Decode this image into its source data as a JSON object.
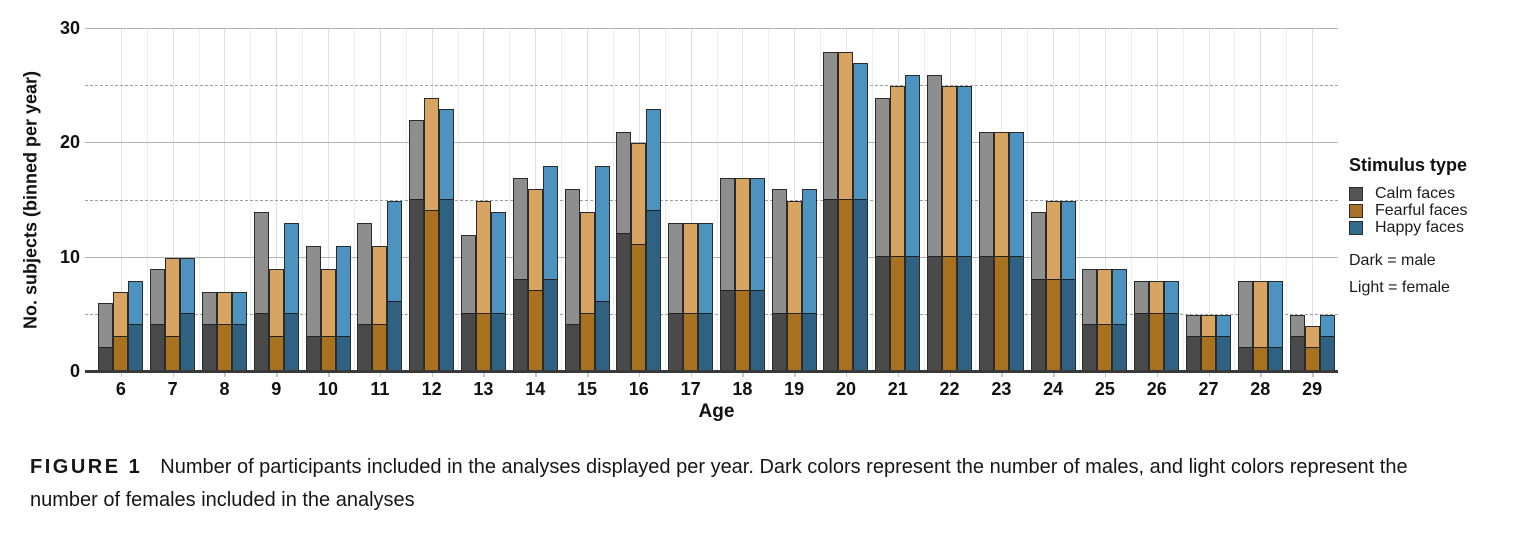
{
  "chart_data": {
    "type": "bar",
    "title": "",
    "xlabel": "Age",
    "ylabel": "No. subjects (binned per year)",
    "ylim": [
      0,
      30
    ],
    "yticks": [
      0,
      10,
      20,
      30
    ],
    "solid_gridlines": [
      10,
      20,
      30
    ],
    "dashed_gridlines": [
      5,
      15,
      25
    ],
    "grid": true,
    "legend_position": "right",
    "categories": [
      6,
      7,
      8,
      9,
      10,
      11,
      12,
      13,
      14,
      15,
      16,
      17,
      18,
      19,
      20,
      21,
      22,
      23,
      24,
      25,
      26,
      27,
      28,
      29
    ],
    "series": [
      {
        "name": "Calm faces",
        "totals": [
          6,
          9,
          7,
          14,
          11,
          13,
          22,
          12,
          17,
          16,
          21,
          13,
          17,
          16,
          28,
          24,
          26,
          21,
          14,
          9,
          8,
          5,
          8,
          5
        ],
        "males": [
          2,
          4,
          4,
          5,
          3,
          4,
          15,
          5,
          8,
          4,
          12,
          5,
          7,
          5,
          15,
          10,
          10,
          10,
          8,
          4,
          5,
          3,
          2,
          3
        ],
        "color_dark": "#4a4a4a",
        "color_light": "#8e8e8e"
      },
      {
        "name": "Fearful faces",
        "totals": [
          7,
          10,
          7,
          9,
          9,
          11,
          24,
          15,
          16,
          14,
          20,
          13,
          17,
          15,
          28,
          25,
          25,
          21,
          15,
          9,
          8,
          5,
          8,
          4
        ],
        "males": [
          3,
          3,
          4,
          3,
          3,
          4,
          14,
          5,
          7,
          5,
          11,
          5,
          7,
          5,
          15,
          10,
          10,
          10,
          8,
          4,
          5,
          3,
          2,
          2
        ],
        "color_dark": "#a8711f",
        "color_light": "#d7a561"
      },
      {
        "name": "Happy faces",
        "totals": [
          8,
          10,
          7,
          13,
          11,
          15,
          23,
          14,
          18,
          18,
          23,
          13,
          17,
          16,
          27,
          26,
          25,
          21,
          15,
          9,
          8,
          5,
          8,
          5
        ],
        "males": [
          4,
          5,
          4,
          5,
          3,
          6,
          15,
          5,
          8,
          6,
          14,
          5,
          7,
          5,
          15,
          10,
          10,
          10,
          8,
          4,
          5,
          3,
          2,
          3
        ],
        "color_dark": "#2f6183",
        "color_light": "#4c94bf"
      }
    ]
  },
  "legend": {
    "title": "Stimulus type",
    "items": [
      {
        "label": "Calm faces",
        "swatch_color": "#555555"
      },
      {
        "label": "Fearful faces",
        "swatch_color": "#a8722a"
      },
      {
        "label": "Happy faces",
        "swatch_color": "#336b8c"
      }
    ],
    "note_dark": "Dark = male",
    "note_light": "Light = female"
  },
  "figure": {
    "caption_label": "FIGURE 1",
    "caption_text": "Number of participants included in the analyses displayed per year. Dark colors represent the number of males, and light colors represent the number of females included in the analyses"
  }
}
